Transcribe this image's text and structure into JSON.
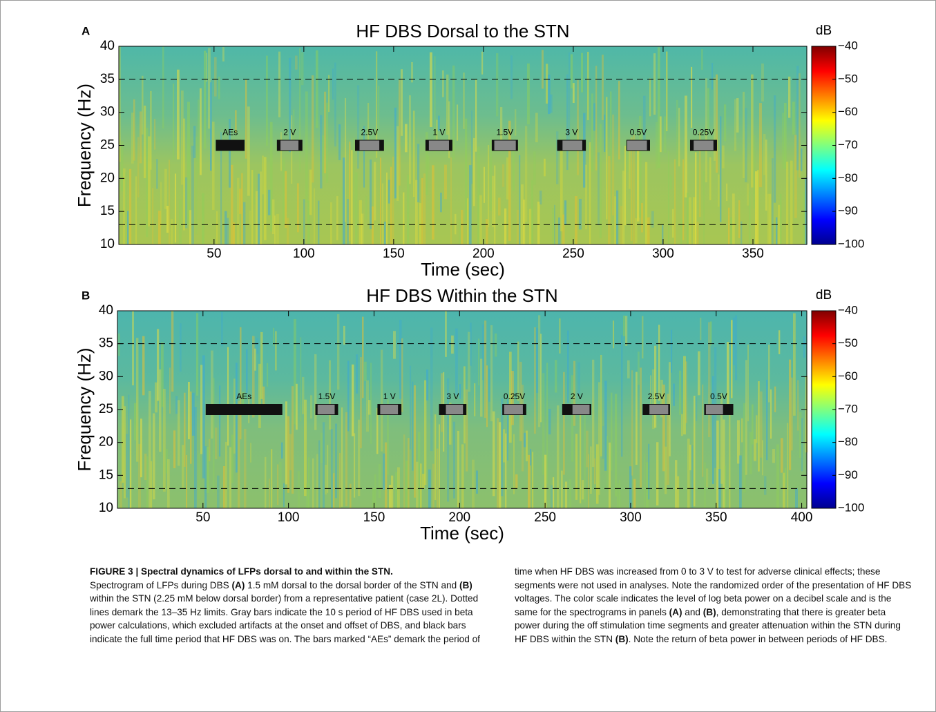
{
  "chart_data": [
    {
      "type": "spectrogram",
      "panel": "A",
      "title": "HF DBS Dorsal to the STN",
      "xlabel": "Time (sec)",
      "ylabel": "Frequency (Hz)",
      "xlim": [
        -3,
        380
      ],
      "xticks": [
        50,
        100,
        150,
        200,
        250,
        300,
        350
      ],
      "ylim": [
        10,
        40
      ],
      "yticks": [
        10,
        15,
        20,
        25,
        30,
        35,
        40
      ],
      "dashed_lines": [
        13,
        35
      ],
      "bar_y": 25,
      "bars": [
        {
          "label": "AEs",
          "on": [
            51,
            67
          ]
        },
        {
          "label": "2 V",
          "on": [
            85,
            99.2
          ],
          "beta": [
            87,
            97
          ]
        },
        {
          "label": "2.5V",
          "on": [
            128.5,
            144.6
          ],
          "beta": [
            131,
            142
          ]
        },
        {
          "label": "1 V",
          "on": [
            167.7,
            182.7
          ],
          "beta": [
            169.6,
            180.8
          ]
        },
        {
          "label": "1.5V",
          "on": [
            204.6,
            219.2
          ],
          "beta": [
            206,
            218
          ]
        },
        {
          "label": "3 V",
          "on": [
            241,
            257
          ],
          "beta": [
            244,
            255
          ]
        },
        {
          "label": "0.5V",
          "on": [
            279.6,
            292.7
          ],
          "beta": [
            280,
            291
          ]
        },
        {
          "label": "0.25V",
          "on": [
            315,
            330
          ],
          "beta": [
            317,
            328
          ]
        }
      ],
      "colorbar": {
        "label": "dB",
        "colormap": "jet",
        "clim": [
          -100,
          -40
        ],
        "ticks": [
          {
            "value": -40,
            "label": "−40"
          },
          {
            "value": -50,
            "label": "−50"
          },
          {
            "value": -60,
            "label": "−60"
          },
          {
            "value": -70,
            "label": "−70"
          },
          {
            "value": -80,
            "label": "−80"
          },
          {
            "value": -90,
            "label": "−90"
          },
          {
            "value": -100,
            "label": "−100"
          }
        ]
      }
    },
    {
      "type": "spectrogram",
      "panel": "B",
      "title": "HF DBS Within the STN",
      "xlabel": "Time (sec)",
      "ylabel": "Frequency (Hz)",
      "xlim": [
        0,
        403
      ],
      "xticks": [
        50,
        100,
        150,
        200,
        250,
        300,
        350,
        400
      ],
      "ylim": [
        10,
        40
      ],
      "yticks": [
        10,
        15,
        20,
        25,
        30,
        35,
        40
      ],
      "dashed_lines": [
        13,
        35
      ],
      "bar_y": 25,
      "bars": [
        {
          "label": "AEs",
          "on": [
            51.6,
            96.4
          ]
        },
        {
          "label": "1.5V",
          "on": [
            115.7,
            129
          ],
          "beta": [
            117,
            127
          ]
        },
        {
          "label": "1 V",
          "on": [
            152,
            166
          ],
          "beta": [
            153.6,
            164
          ]
        },
        {
          "label": "3 V",
          "on": [
            188,
            204
          ],
          "beta": [
            192,
            202
          ]
        },
        {
          "label": "0.25V",
          "on": [
            225,
            239
          ],
          "beta": [
            226,
            237
          ]
        },
        {
          "label": "2 V",
          "on": [
            260,
            277
          ],
          "beta": [
            266,
            276
          ]
        },
        {
          "label": "2.5V",
          "on": [
            307,
            323
          ],
          "beta": [
            311,
            322
          ]
        },
        {
          "label": "0.5V",
          "on": [
            343,
            360
          ],
          "beta": [
            344,
            354
          ]
        }
      ],
      "colorbar": {
        "label": "dB",
        "colormap": "jet",
        "clim": [
          -100,
          -40
        ],
        "ticks": [
          {
            "value": -40,
            "label": "−40"
          },
          {
            "value": -50,
            "label": "−50"
          },
          {
            "value": -60,
            "label": "−60"
          },
          {
            "value": -70,
            "label": "−70"
          },
          {
            "value": -80,
            "label": "−80"
          },
          {
            "value": -90,
            "label": "−90"
          },
          {
            "value": -100,
            "label": "−100"
          }
        ]
      }
    }
  ],
  "caption": {
    "heading": "FIGURE 3 | Spectral dynamics of LFPs dorsal to and within the STN.",
    "runs": [
      {
        "text": "Spectrogram of LFPs during DBS ",
        "bold": false
      },
      {
        "text": "(A)",
        "bold": true
      },
      {
        "text": " 1.5 mM dorsal to the dorsal border of the STN and ",
        "bold": false
      },
      {
        "text": "(B)",
        "bold": true
      },
      {
        "text": " within the STN (2.25 mM below dorsal border) from a representative patient (case 2L). Dotted lines demark the 13–35 Hz limits. Gray bars indicate the 10 s period of HF DBS used in beta power calculations, which excluded artifacts at the onset and offset of DBS, and black bars indicate the full time period that HF DBS was on. The bars marked “AEs” demark the period of time when HF DBS was increased from 0 to 3 V to test for adverse clinical effects; these segments were not used in analyses. Note the randomized order of the presentation of HF DBS voltages. The color scale indicates the level of log beta power on a decibel scale and is the same for the spectrograms in panels ",
        "bold": false
      },
      {
        "text": "(A)",
        "bold": true
      },
      {
        "text": " and ",
        "bold": false
      },
      {
        "text": "(B)",
        "bold": true
      },
      {
        "text": ", demonstrating that there is greater beta power during the off stimulation time segments and greater attenuation within the STN during HF DBS within the STN ",
        "bold": false
      },
      {
        "text": "(B)",
        "bold": true
      },
      {
        "text": ". Note the return of beta power in between periods of HF DBS.",
        "bold": false
      }
    ]
  }
}
